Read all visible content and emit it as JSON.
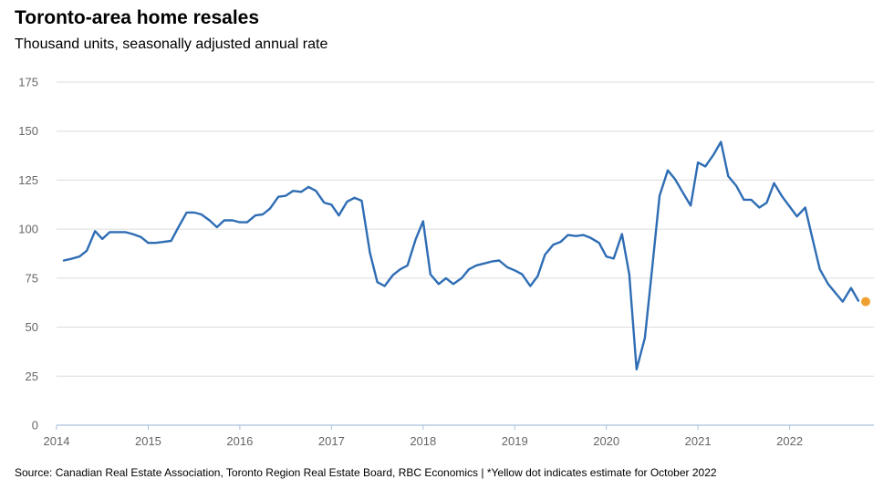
{
  "chart_data": {
    "type": "line",
    "title": "Toronto-area home resales",
    "subtitle": "Thousand units, seasonally adjusted annual rate",
    "ylim": [
      0,
      175
    ],
    "yticks": [
      0,
      25,
      50,
      75,
      100,
      125,
      150,
      175
    ],
    "xlim": [
      2014,
      2022.92
    ],
    "xticks": [
      2014,
      2015,
      2016,
      2017,
      2018,
      2019,
      2020,
      2021,
      2022
    ],
    "grid": true,
    "series": [
      {
        "color": "#2e6db4",
        "points": [
          [
            2014.08,
            84
          ],
          [
            2014.17,
            85
          ],
          [
            2014.25,
            86
          ],
          [
            2014.33,
            89
          ],
          [
            2014.42,
            99
          ],
          [
            2014.5,
            95
          ],
          [
            2014.58,
            98.5
          ],
          [
            2014.67,
            98.5
          ],
          [
            2014.75,
            98.5
          ],
          [
            2014.83,
            97.5
          ],
          [
            2014.92,
            96
          ],
          [
            2015.0,
            93
          ],
          [
            2015.08,
            93
          ],
          [
            2015.17,
            93.5
          ],
          [
            2015.25,
            94
          ],
          [
            2015.33,
            101
          ],
          [
            2015.42,
            108.5
          ],
          [
            2015.5,
            108.5
          ],
          [
            2015.58,
            107.5
          ],
          [
            2015.67,
            104.5
          ],
          [
            2015.75,
            101
          ],
          [
            2015.83,
            104.5
          ],
          [
            2015.92,
            104.5
          ],
          [
            2016.0,
            103.5
          ],
          [
            2016.08,
            103.5
          ],
          [
            2016.17,
            107
          ],
          [
            2016.25,
            107.5
          ],
          [
            2016.33,
            110.5
          ],
          [
            2016.42,
            116.5
          ],
          [
            2016.5,
            117
          ],
          [
            2016.58,
            119.5
          ],
          [
            2016.67,
            119
          ],
          [
            2016.75,
            121.5
          ],
          [
            2016.83,
            119.5
          ],
          [
            2016.92,
            113.5
          ],
          [
            2017.0,
            112.5
          ],
          [
            2017.08,
            107
          ],
          [
            2017.17,
            114
          ],
          [
            2017.25,
            116
          ],
          [
            2017.33,
            114.5
          ],
          [
            2017.42,
            88
          ],
          [
            2017.5,
            73
          ],
          [
            2017.58,
            71
          ],
          [
            2017.67,
            76.5
          ],
          [
            2017.75,
            79.5
          ],
          [
            2017.83,
            81.5
          ],
          [
            2017.92,
            95
          ],
          [
            2018.0,
            104
          ],
          [
            2018.08,
            77
          ],
          [
            2018.17,
            72
          ],
          [
            2018.25,
            75
          ],
          [
            2018.33,
            72
          ],
          [
            2018.42,
            75
          ],
          [
            2018.5,
            79.5
          ],
          [
            2018.58,
            81.5
          ],
          [
            2018.67,
            82.5
          ],
          [
            2018.75,
            83.5
          ],
          [
            2018.83,
            84
          ],
          [
            2018.92,
            80.5
          ],
          [
            2019.0,
            79
          ],
          [
            2019.08,
            77
          ],
          [
            2019.17,
            71
          ],
          [
            2019.25,
            76
          ],
          [
            2019.33,
            87
          ],
          [
            2019.42,
            92
          ],
          [
            2019.5,
            93.5
          ],
          [
            2019.58,
            97
          ],
          [
            2019.67,
            96.5
          ],
          [
            2019.75,
            97
          ],
          [
            2019.83,
            95.5
          ],
          [
            2019.92,
            93
          ],
          [
            2020.0,
            86
          ],
          [
            2020.08,
            85
          ],
          [
            2020.17,
            97.5
          ],
          [
            2020.25,
            77
          ],
          [
            2020.33,
            28.5
          ],
          [
            2020.42,
            44.5
          ],
          [
            2020.5,
            80
          ],
          [
            2020.58,
            117
          ],
          [
            2020.67,
            130
          ],
          [
            2020.75,
            125.5
          ],
          [
            2020.83,
            119
          ],
          [
            2020.92,
            112
          ],
          [
            2021.0,
            134
          ],
          [
            2021.08,
            132
          ],
          [
            2021.17,
            138
          ],
          [
            2021.25,
            144.5
          ],
          [
            2021.33,
            127
          ],
          [
            2021.42,
            122
          ],
          [
            2021.5,
            115
          ],
          [
            2021.58,
            115
          ],
          [
            2021.67,
            111
          ],
          [
            2021.75,
            113.5
          ],
          [
            2021.83,
            123.5
          ],
          [
            2021.92,
            116.5
          ],
          [
            2022.0,
            111.5
          ],
          [
            2022.08,
            106.5
          ],
          [
            2022.17,
            111
          ],
          [
            2022.25,
            95
          ],
          [
            2022.33,
            79.5
          ],
          [
            2022.42,
            72
          ],
          [
            2022.5,
            67.5
          ],
          [
            2022.58,
            63
          ],
          [
            2022.67,
            70
          ],
          [
            2022.75,
            63.5
          ]
        ]
      }
    ],
    "estimate_point": {
      "x": 2022.83,
      "y": 63,
      "color": "#f0a030"
    }
  },
  "source_note": "Source: Canadian Real Estate Association, Toronto Region Real Estate Board, RBC Economics | *Yellow dot indicates estimate for October 2022"
}
